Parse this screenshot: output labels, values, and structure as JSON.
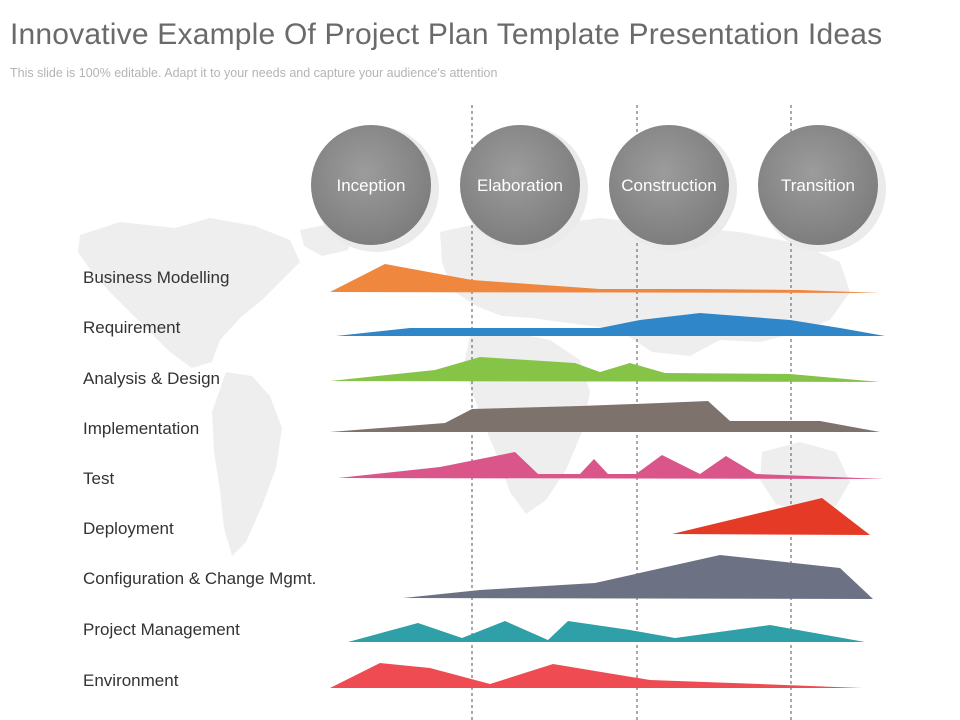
{
  "slide": {
    "title": "Innovative Example Of Project Plan Template Presentation Ideas",
    "subtitle": "This slide is 100% editable. Adapt it to your needs and capture your audience's attention"
  },
  "phases": [
    {
      "name": "Inception"
    },
    {
      "name": "Elaboration"
    },
    {
      "name": "Construction"
    },
    {
      "name": "Transition"
    }
  ],
  "disciplines": [
    {
      "label": "Business Modelling",
      "color": "#f0873e"
    },
    {
      "label": "Requirement",
      "color": "#2f86c8"
    },
    {
      "label": "Analysis & Design",
      "color": "#86c447"
    },
    {
      "label": "Implementation",
      "color": "#7d736c"
    },
    {
      "label": "Test",
      "color": "#d9558a"
    },
    {
      "label": "Deployment",
      "color": "#e53b26"
    },
    {
      "label": "Configuration & Change Mgmt.",
      "color": "#6d7184"
    },
    {
      "label": "Project Management",
      "color": "#2fa0a8"
    },
    {
      "label": "Environment",
      "color": "#ee4c52"
    }
  ],
  "colors": {
    "phase_circle": "#8e8e8e",
    "divider": "#555555",
    "map": "#eeeeee"
  },
  "background_image": "world-map"
}
